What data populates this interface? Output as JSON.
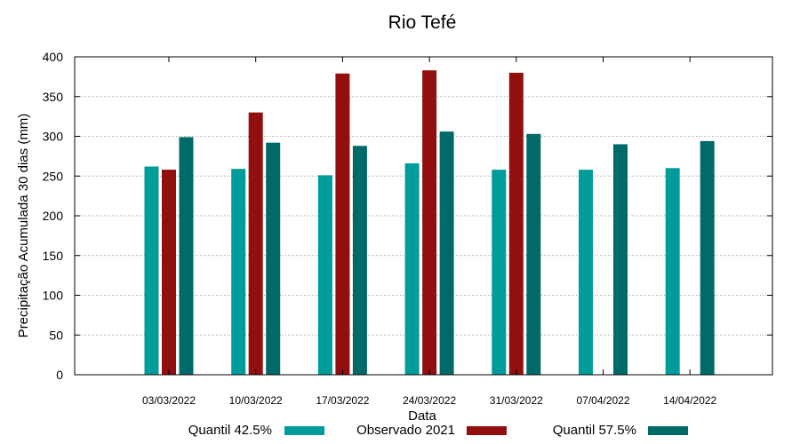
{
  "chart_data": {
    "type": "bar",
    "title": "Rio Tefé",
    "xlabel": "Data",
    "ylabel": "Precipitação Acumulada 30 dias (mm)",
    "ylim": [
      0,
      400
    ],
    "yticks": [
      0,
      50,
      100,
      150,
      200,
      250,
      300,
      350,
      400
    ],
    "grid": true,
    "legend_position": "bottom",
    "categories": [
      "03/03/2022",
      "10/03/2022",
      "17/03/2022",
      "24/03/2022",
      "31/03/2022",
      "07/04/2022",
      "14/04/2022"
    ],
    "series": [
      {
        "name": "Quantil 42.5%",
        "color": "#009b9b",
        "values": [
          262,
          259,
          251,
          266,
          258,
          258,
          260
        ]
      },
      {
        "name": "Observado 2021",
        "color": "#920f0f",
        "values": [
          258,
          330,
          379,
          383,
          380,
          null,
          null
        ]
      },
      {
        "name": "Quantil 57.5%",
        "color": "#006a68",
        "values": [
          299,
          292,
          288,
          306,
          303,
          290,
          294
        ]
      }
    ]
  }
}
